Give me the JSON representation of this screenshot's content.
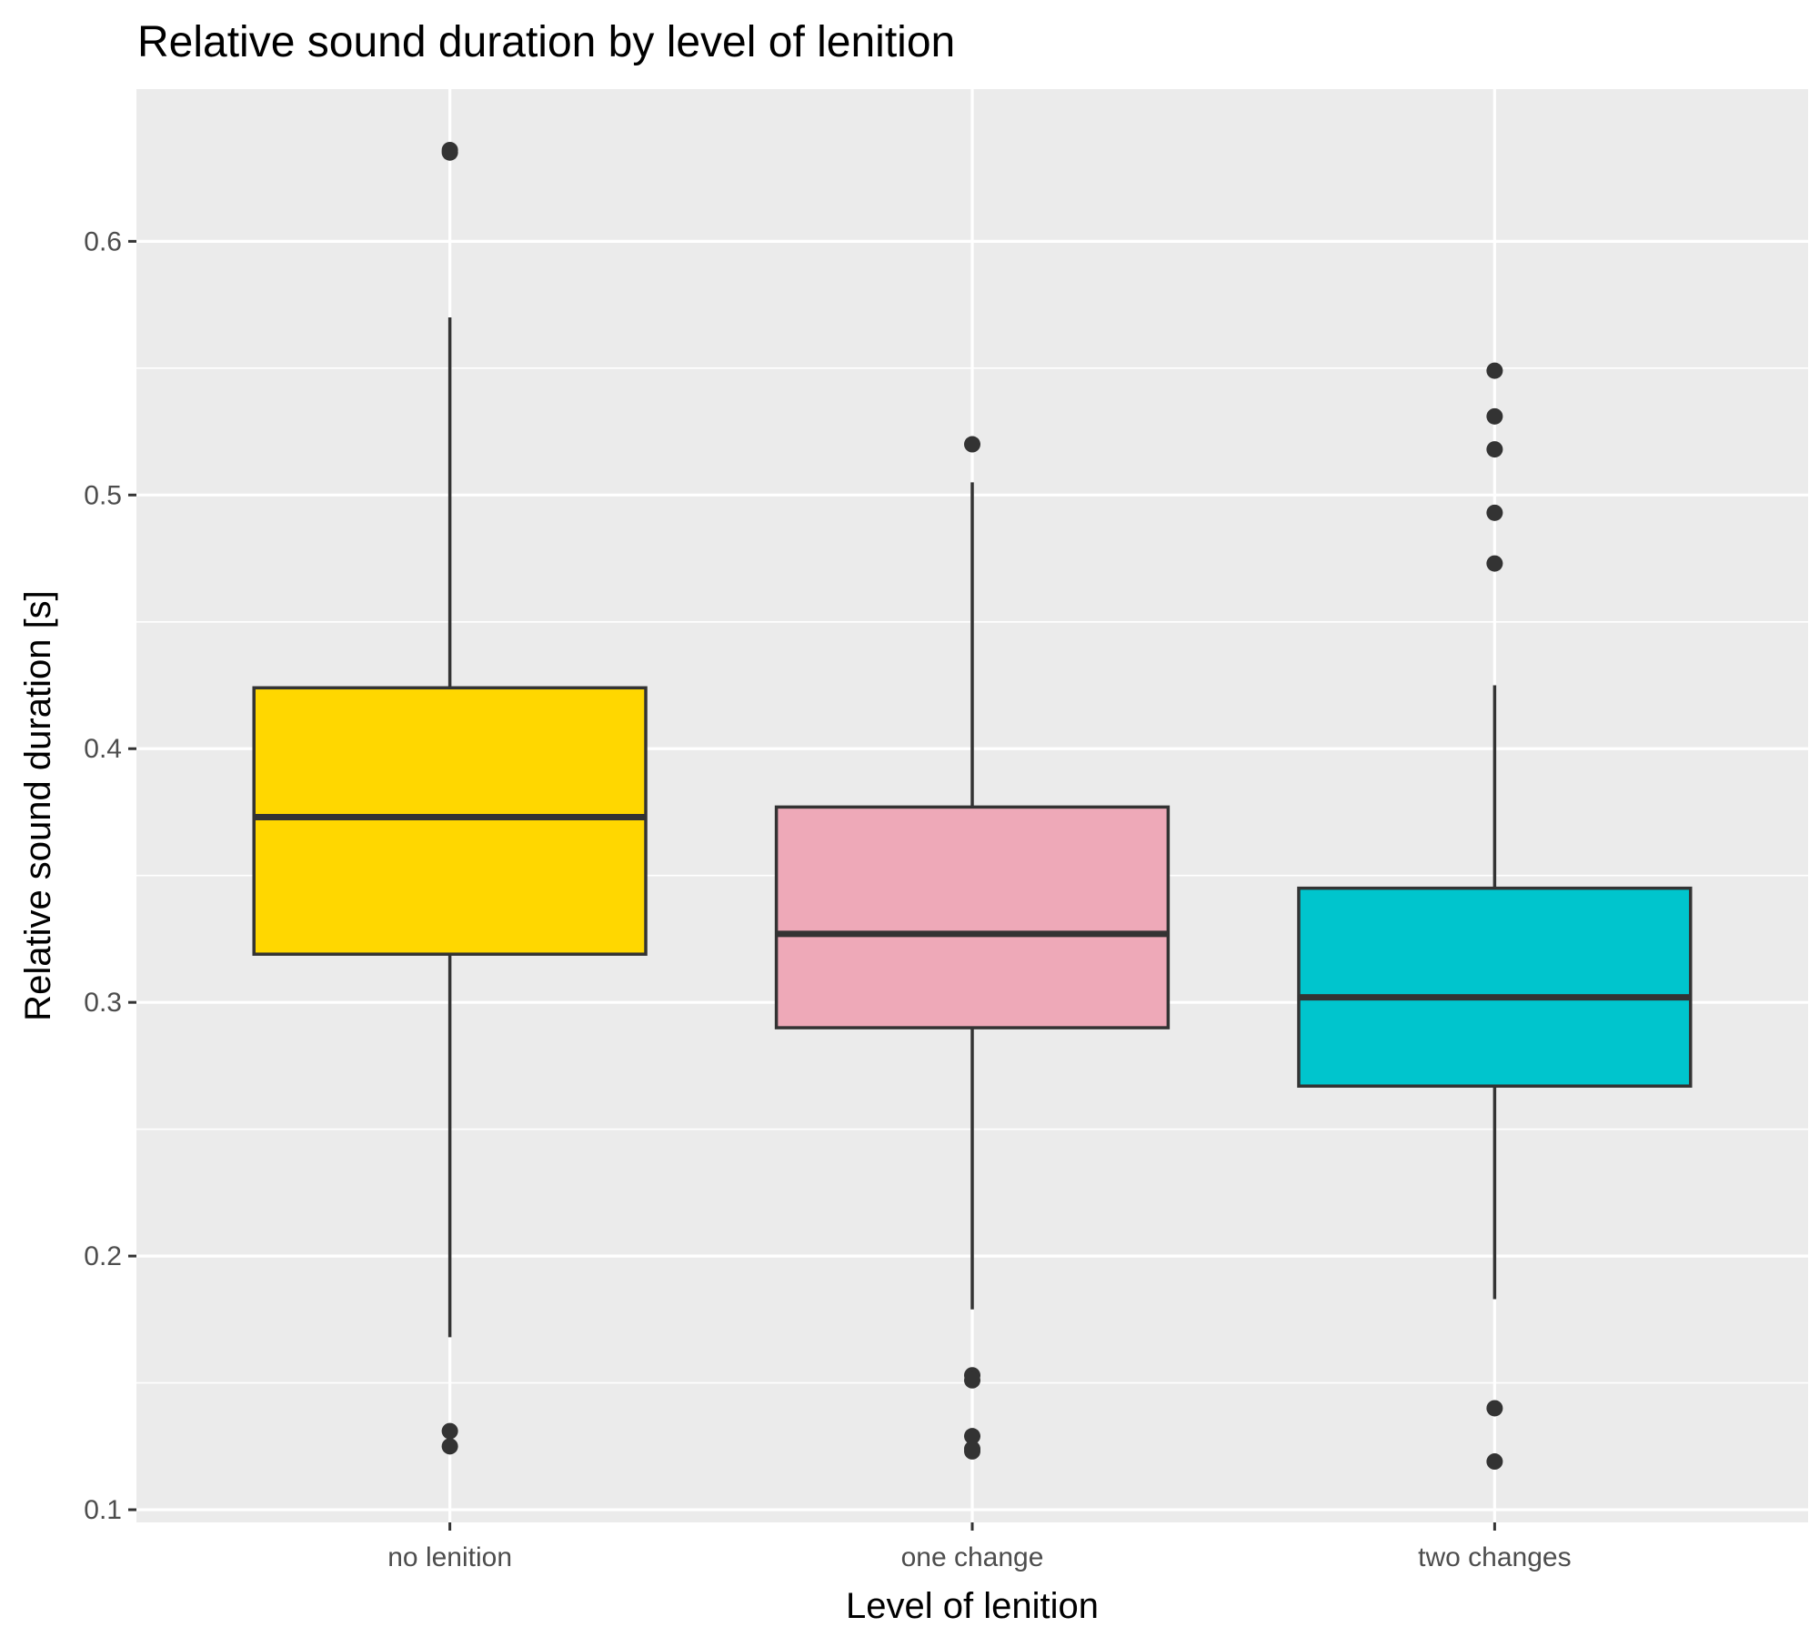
{
  "chart_data": {
    "type": "boxplot",
    "title": "Relative sound duration by level of lenition",
    "xlabel": "Level of lenition",
    "ylabel": "Relative sound duration [s]",
    "ylim": [
      0.095,
      0.66
    ],
    "yticks": [
      0.1,
      0.2,
      0.3,
      0.4,
      0.5,
      0.6
    ],
    "ytick_labels": [
      "0.1",
      "0.2",
      "0.3",
      "0.4",
      "0.5",
      "0.6"
    ],
    "grid": true,
    "legend": "none",
    "categories": [
      "no lenition",
      "one change",
      "two changes"
    ],
    "boxes": [
      {
        "category": "no lenition",
        "color": "#FFD700",
        "whisker_low": 0.168,
        "q1": 0.319,
        "median": 0.373,
        "q3": 0.424,
        "whisker_high": 0.57,
        "outliers": [
          0.635,
          0.636,
          0.131,
          0.125
        ]
      },
      {
        "category": "one change",
        "color": "#EEA9B8",
        "whisker_low": 0.179,
        "q1": 0.29,
        "median": 0.327,
        "q3": 0.377,
        "whisker_high": 0.505,
        "outliers": [
          0.52,
          0.153,
          0.151,
          0.129,
          0.124,
          0.123
        ]
      },
      {
        "category": "two changes",
        "color": "#00C5CD",
        "whisker_low": 0.183,
        "q1": 0.267,
        "median": 0.302,
        "q3": 0.345,
        "whisker_high": 0.425,
        "outliers": [
          0.549,
          0.531,
          0.518,
          0.493,
          0.473,
          0.14,
          0.119
        ]
      }
    ]
  }
}
